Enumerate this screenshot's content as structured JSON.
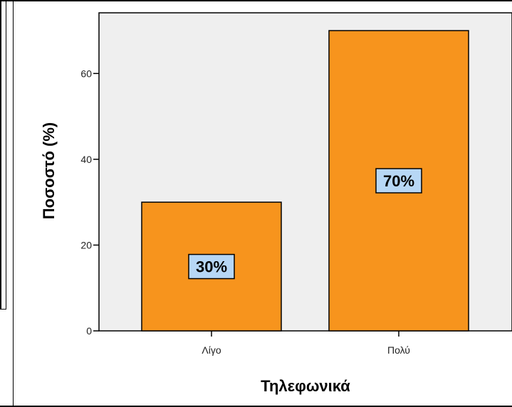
{
  "chart_data": {
    "type": "bar",
    "categories": [
      "Λίγο",
      "Πολύ"
    ],
    "values": [
      30,
      70
    ],
    "data_labels": [
      "30%",
      "70%"
    ],
    "xlabel": "Τηλεφωνικά",
    "ylabel": "Ποσοστό (%)",
    "ylim": [
      0,
      70
    ],
    "yticks": [
      0,
      20,
      40,
      60
    ],
    "ytick_labels": [
      "0",
      "20",
      "40",
      "60"
    ],
    "grid": false,
    "colors": {
      "bar_fill": "#f7941d",
      "bar_stroke": "#000000",
      "plot_background": "#efefef",
      "label_box_fill": "#b7d7f5"
    }
  }
}
